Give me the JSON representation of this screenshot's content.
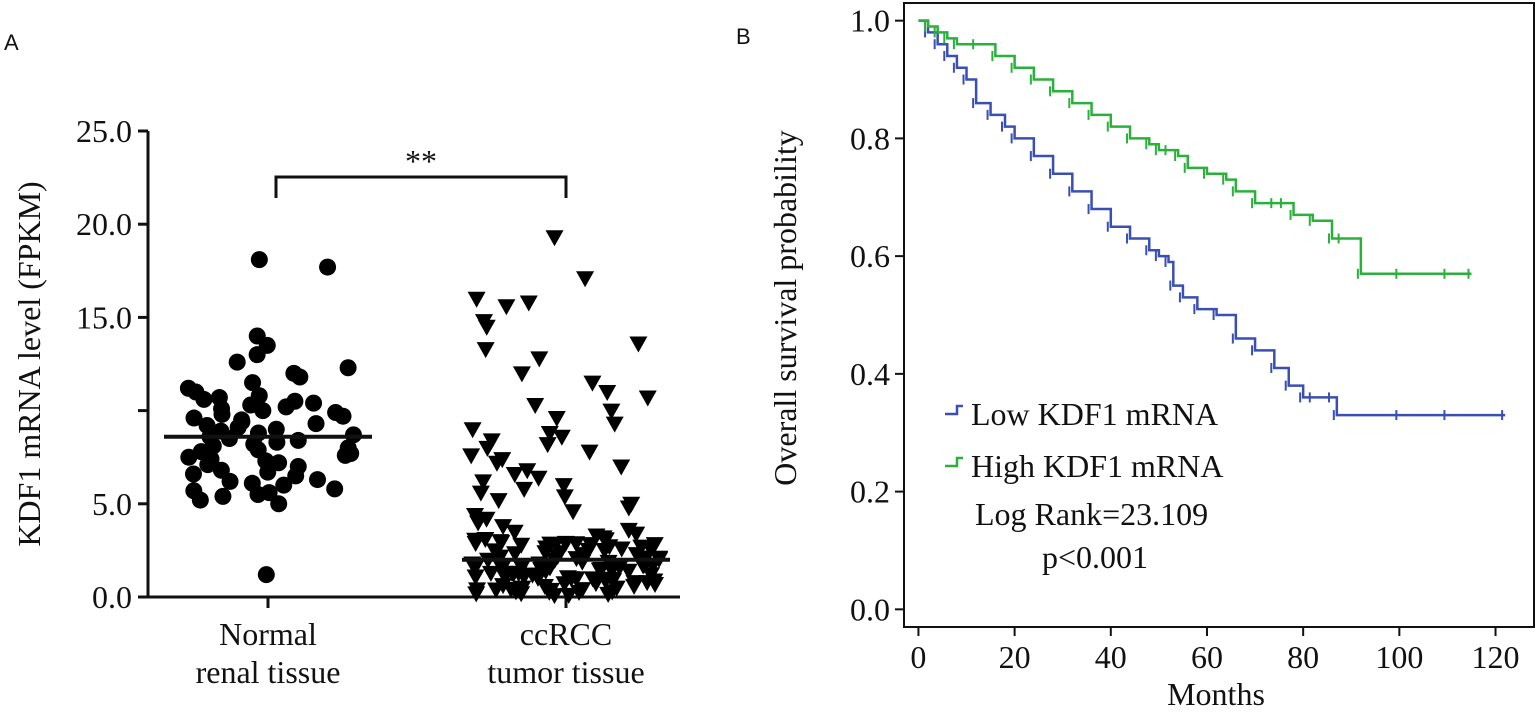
{
  "panel_labels": {
    "a": "A",
    "b": "B"
  },
  "colors": {
    "axis": "#111111",
    "low": "#3a4fb4",
    "high": "#2bb03c",
    "points": "#000000"
  },
  "chart_data": [
    {
      "type": "scatter",
      "title": "",
      "xlabel": "",
      "ylabel": "KDF1 mRNA level (FPKM)",
      "ylim": [
        0,
        25
      ],
      "yticks": [
        0,
        5,
        10,
        15,
        20,
        25
      ],
      "ytick_labels": [
        "0.0",
        "5.0",
        "",
        "15.0",
        "20.0",
        "25.0"
      ],
      "categories": [
        {
          "line1": "Normal",
          "line2": "renal tissue"
        },
        {
          "line1": "ccRCC",
          "line2": "tumor tissue"
        }
      ],
      "significance": "**",
      "series": [
        {
          "name": "Normal renal tissue",
          "marker": "circle",
          "median": 8.6,
          "values": [
            1.2,
            5.0,
            5.2,
            5.4,
            5.5,
            5.6,
            5.7,
            5.8,
            6.0,
            6.1,
            6.2,
            6.3,
            6.5,
            6.6,
            6.7,
            6.8,
            7.0,
            7.1,
            7.2,
            7.3,
            7.4,
            7.5,
            7.6,
            7.7,
            7.8,
            7.9,
            8.0,
            8.1,
            8.2,
            8.3,
            8.4,
            8.5,
            8.6,
            8.7,
            8.8,
            8.9,
            9.0,
            9.1,
            9.2,
            9.3,
            9.4,
            9.5,
            9.6,
            9.7,
            9.8,
            9.9,
            10.0,
            10.1,
            10.2,
            10.3,
            10.4,
            10.5,
            10.6,
            10.7,
            10.8,
            11.0,
            11.2,
            11.5,
            11.8,
            12.0,
            12.3,
            12.6,
            13.0,
            13.5,
            14.0,
            17.7,
            18.1
          ]
        },
        {
          "name": "ccRCC tumor tissue",
          "marker": "triangle-down",
          "median": 2.0,
          "values": [
            0.1,
            0.2,
            0.3,
            0.3,
            0.4,
            0.5,
            0.5,
            0.6,
            0.7,
            0.8,
            0.8,
            0.9,
            1.0,
            1.0,
            1.1,
            1.2,
            1.2,
            1.3,
            1.4,
            1.5,
            1.5,
            1.6,
            1.7,
            1.8,
            1.8,
            1.9,
            2.0,
            2.0,
            2.1,
            2.2,
            2.3,
            2.3,
            2.4,
            2.5,
            2.6,
            2.7,
            2.8,
            2.9,
            3.0,
            3.1,
            3.2,
            3.3,
            3.4,
            3.5,
            3.6,
            3.8,
            4.0,
            4.2,
            4.4,
            4.6,
            4.8,
            5.0,
            5.2,
            5.4,
            5.6,
            5.8,
            6.0,
            6.2,
            6.4,
            6.6,
            6.8,
            7.0,
            7.2,
            7.4,
            7.6,
            7.8,
            8.0,
            8.2,
            8.4,
            8.6,
            8.8,
            9.0,
            9.3,
            9.6,
            10.0,
            10.3,
            10.7,
            11.0,
            11.5,
            12.0,
            12.8,
            13.3,
            13.6,
            14.5,
            14.8,
            15.6,
            15.8,
            16.0,
            17.1,
            19.3
          ]
        }
      ]
    },
    {
      "type": "line",
      "title": "",
      "xlabel": "Months",
      "ylabel": "Overall survival probability",
      "xlim": [
        -3,
        128
      ],
      "ylim": [
        -0.03,
        1.03
      ],
      "xticks": [
        0,
        20,
        40,
        60,
        80,
        100,
        120
      ],
      "yticks": [
        0.0,
        0.2,
        0.4,
        0.6,
        0.8,
        1.0
      ],
      "ytick_labels": [
        "0.0",
        "0.2",
        "0.4",
        "0.6",
        "0.8",
        "1.0"
      ],
      "legend": {
        "placement": "bottom-left"
      },
      "annotations": {
        "log_rank": "Log Rank=23.109",
        "p_value": "p<0.001"
      },
      "series": [
        {
          "name": "Low KDF1 mRNA",
          "color": "#3a4fb4",
          "x": [
            0,
            2,
            4,
            6,
            8,
            10,
            12,
            15,
            18,
            20,
            24,
            28,
            32,
            36,
            40,
            44,
            48,
            50,
            52,
            53,
            55,
            58,
            62,
            66,
            70,
            74,
            77,
            80,
            82,
            86,
            87,
            100,
            110,
            122
          ],
          "y": [
            1.0,
            0.98,
            0.96,
            0.94,
            0.92,
            0.9,
            0.86,
            0.84,
            0.82,
            0.8,
            0.77,
            0.74,
            0.71,
            0.68,
            0.65,
            0.63,
            0.61,
            0.6,
            0.59,
            0.55,
            0.53,
            0.51,
            0.5,
            0.46,
            0.44,
            0.41,
            0.38,
            0.36,
            0.36,
            0.36,
            0.33,
            0.33,
            0.33,
            0.33
          ]
        },
        {
          "name": "High KDF1 mRNA",
          "color": "#2bb03c",
          "x": [
            0,
            2,
            4,
            6,
            8,
            12,
            16,
            20,
            24,
            28,
            32,
            36,
            40,
            44,
            48,
            50,
            52,
            54,
            56,
            60,
            64,
            66,
            70,
            74,
            76,
            78,
            82,
            86,
            88,
            92,
            100,
            110,
            115
          ],
          "y": [
            1.0,
            0.99,
            0.98,
            0.97,
            0.96,
            0.96,
            0.94,
            0.92,
            0.9,
            0.88,
            0.86,
            0.84,
            0.82,
            0.8,
            0.79,
            0.78,
            0.78,
            0.77,
            0.75,
            0.74,
            0.73,
            0.71,
            0.69,
            0.69,
            0.69,
            0.67,
            0.66,
            0.63,
            0.63,
            0.57,
            0.57,
            0.57,
            0.57
          ]
        }
      ]
    }
  ]
}
